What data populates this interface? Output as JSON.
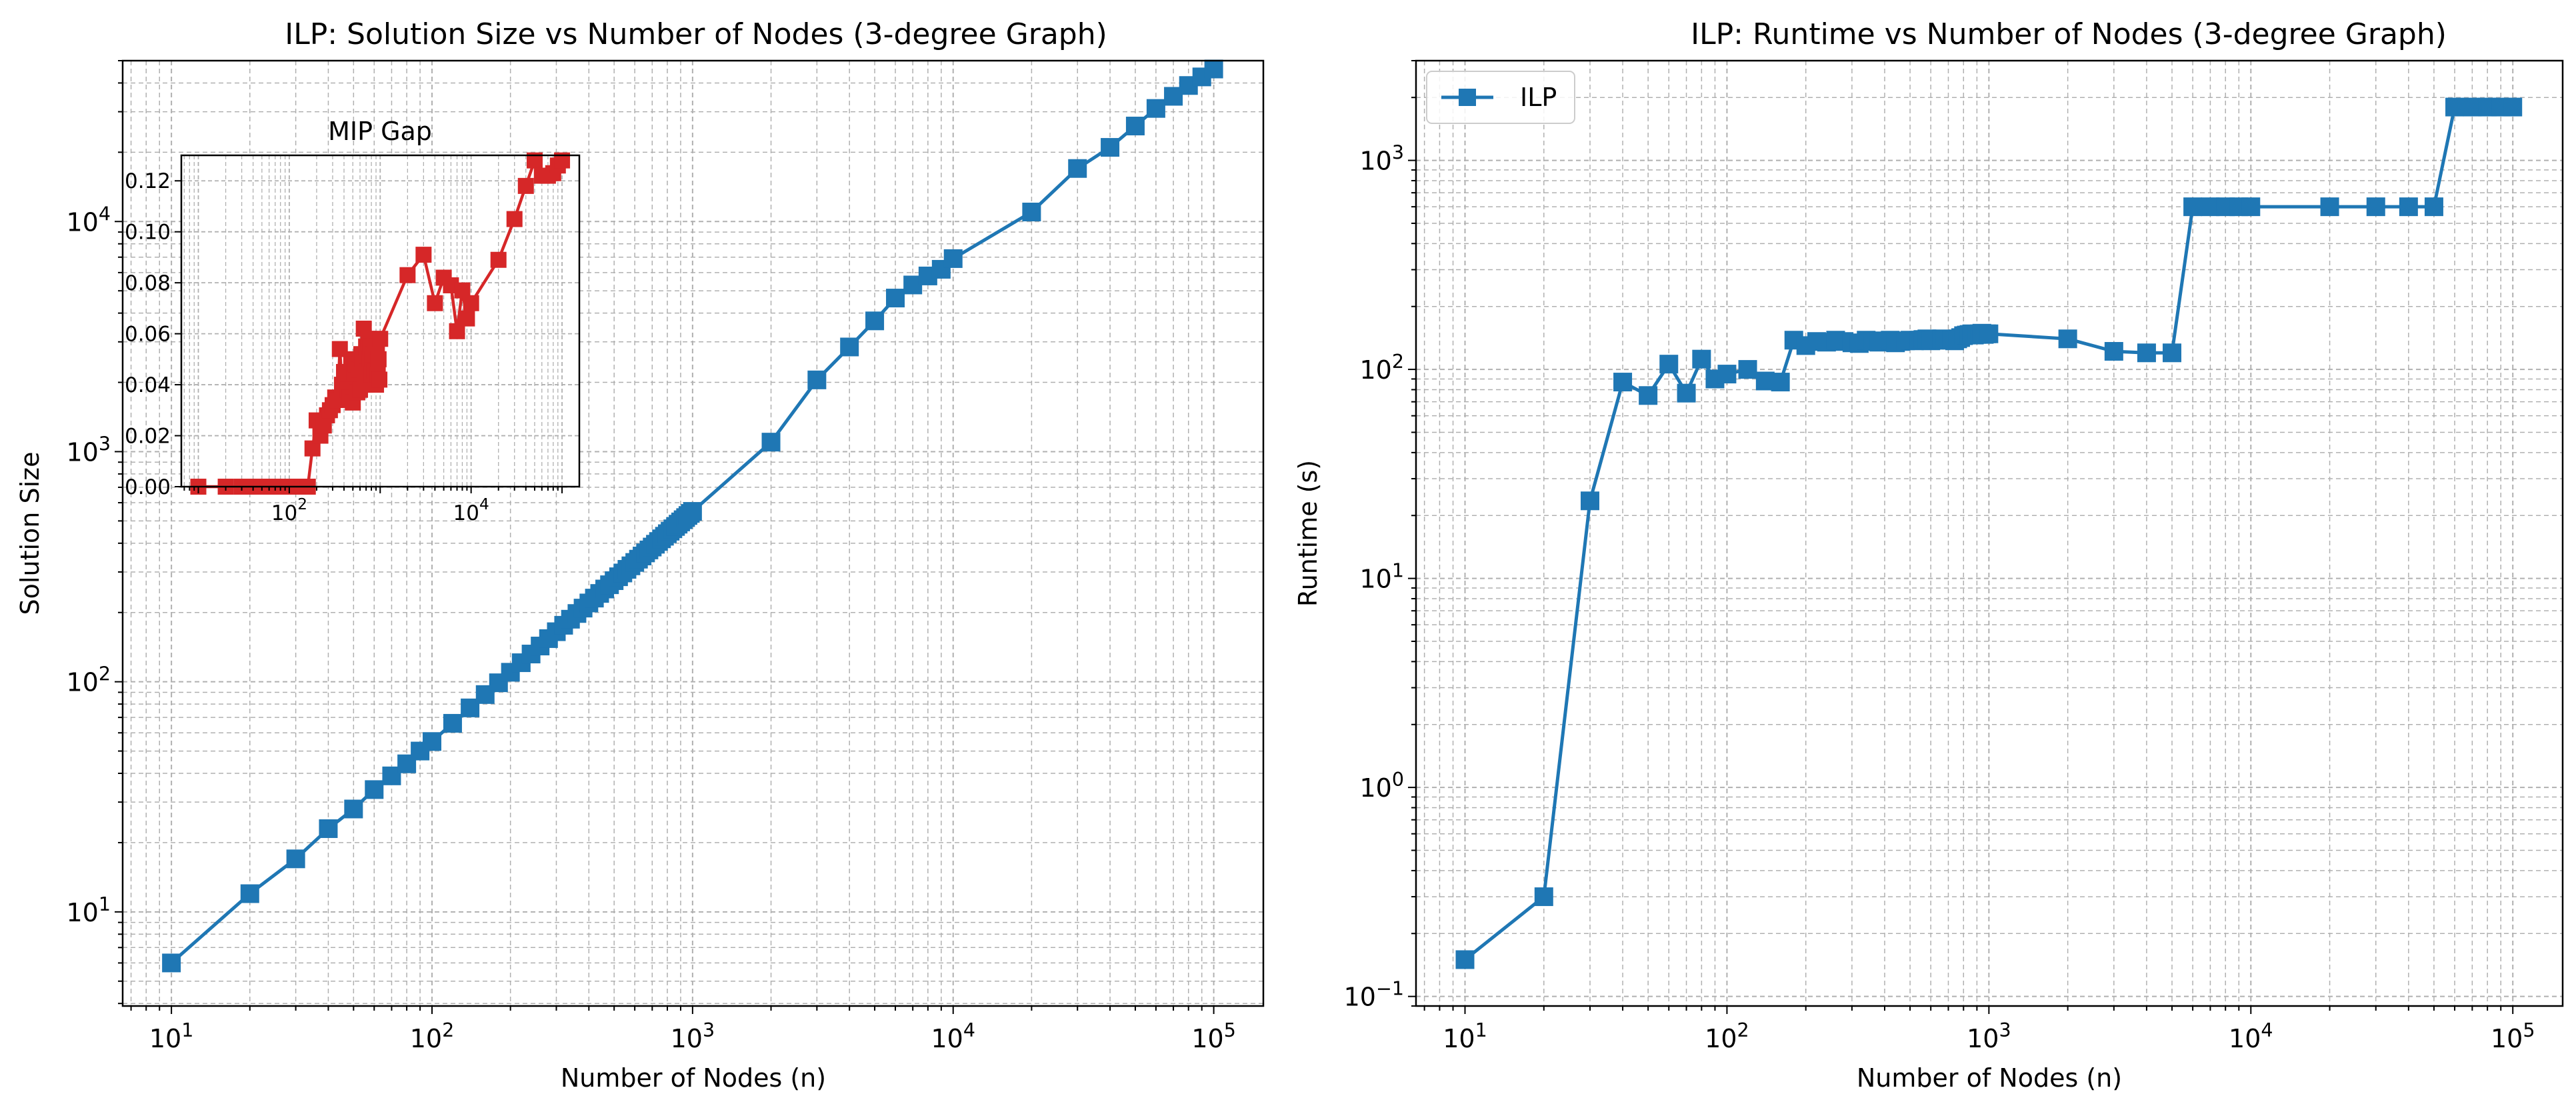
{
  "colors": {
    "ilp": "#1f77b4",
    "gap": "#d62728",
    "grid": "#b0b0b0"
  },
  "chart_data": [
    {
      "type": "line",
      "title": "ILP: Solution Size vs Number of Nodes (3-degree Graph)",
      "xlabel": "Number of Nodes (n)",
      "ylabel": "Solution Size",
      "xscale": "log",
      "yscale": "log",
      "xlim": [
        6.5,
        155000
      ],
      "ylim": [
        3.9,
        50000
      ],
      "xticks": [
        10,
        100,
        1000,
        10000,
        100000
      ],
      "xtick_labels": [
        {
          "b": "10",
          "e": "1"
        },
        {
          "b": "10",
          "e": "2"
        },
        {
          "b": "10",
          "e": "3"
        },
        {
          "b": "10",
          "e": "4"
        },
        {
          "b": "10",
          "e": "5"
        }
      ],
      "yticks": [
        10,
        100,
        1000,
        10000
      ],
      "ytick_labels": [
        {
          "b": "10",
          "e": "1"
        },
        {
          "b": "10",
          "e": "2"
        },
        {
          "b": "10",
          "e": "3"
        },
        {
          "b": "10",
          "e": "4"
        }
      ],
      "grid": true,
      "series": [
        {
          "marker": "square",
          "x": [
            10,
            20,
            30,
            40,
            50,
            60,
            70,
            80,
            90,
            100,
            120,
            140,
            160,
            180,
            200,
            220,
            240,
            260,
            280,
            300,
            320,
            340,
            360,
            380,
            400,
            420,
            440,
            460,
            480,
            500,
            520,
            540,
            560,
            580,
            600,
            620,
            640,
            660,
            680,
            700,
            720,
            740,
            760,
            780,
            800,
            820,
            840,
            860,
            880,
            900,
            920,
            940,
            960,
            980,
            1000,
            2000,
            3000,
            4000,
            5000,
            6000,
            7000,
            8000,
            9000,
            10000,
            20000,
            30000,
            40000,
            50000,
            60000,
            70000,
            80000,
            90000,
            100000
          ],
          "y": [
            6,
            12,
            17,
            23,
            28,
            34,
            39,
            44,
            50,
            55,
            66,
            77,
            88,
            99,
            110,
            121,
            132,
            143,
            154,
            165,
            176,
            187,
            198,
            209,
            220,
            231,
            242,
            253,
            264,
            275,
            286,
            297,
            308,
            319,
            330,
            341,
            352,
            363,
            374,
            385,
            396,
            407,
            418,
            429,
            440,
            451,
            462,
            473,
            484,
            495,
            506,
            517,
            528,
            539,
            550,
            1100,
            2050,
            2850,
            3700,
            4650,
            5300,
            5800,
            6200,
            6900,
            11000,
            17000,
            21000,
            26000,
            31000,
            35000,
            39000,
            42500,
            46000
          ]
        }
      ],
      "inset": {
        "title": "MIP Gap",
        "xscale": "log",
        "xlim": [
          6.5,
          155000
        ],
        "ylim": [
          0,
          0.13
        ],
        "xticks": [
          100,
          10000
        ],
        "xtick_labels": [
          {
            "b": "10",
            "e": "2"
          },
          {
            "b": "10",
            "e": "4"
          }
        ],
        "yticks": [
          0,
          0.02,
          0.04,
          0.06,
          0.08,
          0.1,
          0.12
        ],
        "ytick_labels": [
          "0.00",
          "0.02",
          "0.04",
          "0.06",
          "0.08",
          "0.10",
          "0.12"
        ],
        "grid": true,
        "series": [
          {
            "marker": "square",
            "x": [
              10,
              20,
              30,
              40,
              50,
              60,
              70,
              80,
              90,
              100,
              120,
              140,
              160,
              180,
              200,
              220,
              240,
              260,
              280,
              300,
              320,
              340,
              360,
              380,
              400,
              420,
              440,
              460,
              480,
              500,
              520,
              540,
              560,
              580,
              600,
              620,
              640,
              660,
              680,
              700,
              720,
              740,
              760,
              780,
              800,
              820,
              840,
              860,
              880,
              900,
              920,
              940,
              960,
              980,
              1000,
              2000,
              3000,
              4000,
              5000,
              6000,
              7000,
              8000,
              9000,
              10000,
              20000,
              30000,
              40000,
              50000,
              60000,
              70000,
              80000,
              90000,
              100000
            ],
            "y": [
              0,
              0,
              0,
              0,
              0,
              0,
              0,
              0,
              0,
              0,
              0,
              0,
              0,
              0.015,
              0.026,
              0.02,
              0.024,
              0.028,
              0.03,
              0.032,
              0.035,
              0.034,
              0.054,
              0.04,
              0.045,
              0.044,
              0.038,
              0.035,
              0.05,
              0.033,
              0.045,
              0.048,
              0.037,
              0.046,
              0.038,
              0.052,
              0.05,
              0.062,
              0.04,
              0.055,
              0.045,
              0.058,
              0.05,
              0.055,
              0.044,
              0.05,
              0.052,
              0.045,
              0.058,
              0.04,
              0.055,
              0.044,
              0.05,
              0.042,
              0.058,
              0.083,
              0.091,
              0.072,
              0.082,
              0.079,
              0.061,
              0.077,
              0.066,
              0.072,
              0.089,
              0.105,
              0.118,
              0.128,
              0.122,
              0.122,
              0.123,
              0.126,
              0.128
            ]
          }
        ]
      }
    },
    {
      "type": "line",
      "title": "ILP: Runtime vs Number of Nodes (3-degree Graph)",
      "xlabel": "Number of Nodes (n)",
      "ylabel": "Runtime (s)",
      "xscale": "log",
      "yscale": "log",
      "xlim": [
        6.5,
        155000
      ],
      "ylim": [
        0.09,
        3000
      ],
      "xticks": [
        10,
        100,
        1000,
        10000,
        100000
      ],
      "xtick_labels": [
        {
          "b": "10",
          "e": "1"
        },
        {
          "b": "10",
          "e": "2"
        },
        {
          "b": "10",
          "e": "3"
        },
        {
          "b": "10",
          "e": "4"
        },
        {
          "b": "10",
          "e": "5"
        }
      ],
      "yticks": [
        0.1,
        1,
        10,
        100,
        1000
      ],
      "ytick_labels": [
        {
          "b": "10",
          "e": "−1"
        },
        {
          "b": "10",
          "e": "0"
        },
        {
          "b": "10",
          "e": "1"
        },
        {
          "b": "10",
          "e": "2"
        },
        {
          "b": "10",
          "e": "3"
        }
      ],
      "grid": true,
      "legend": {
        "placement": "upper-left",
        "entries": [
          "ILP"
        ]
      },
      "series": [
        {
          "name": "ILP",
          "marker": "square",
          "x": [
            10,
            20,
            30,
            40,
            50,
            60,
            70,
            80,
            90,
            100,
            120,
            140,
            160,
            180,
            200,
            220,
            240,
            260,
            280,
            300,
            320,
            340,
            360,
            380,
            400,
            420,
            440,
            460,
            480,
            500,
            520,
            540,
            560,
            580,
            600,
            620,
            640,
            660,
            680,
            700,
            720,
            740,
            760,
            780,
            800,
            820,
            840,
            860,
            880,
            900,
            920,
            940,
            960,
            980,
            1000,
            2000,
            3000,
            4000,
            5000,
            6000,
            7000,
            8000,
            9000,
            10000,
            20000,
            30000,
            40000,
            50000,
            60000,
            70000,
            80000,
            90000,
            100000
          ],
          "y": [
            0.15,
            0.3,
            23.5,
            87,
            75,
            106,
            77,
            112,
            90,
            95,
            100,
            88,
            87,
            138,
            130,
            136,
            135,
            138,
            136,
            134,
            133,
            138,
            136,
            135,
            137,
            138,
            134,
            136,
            137,
            138,
            137,
            138,
            139,
            140,
            137,
            138,
            139,
            140,
            138,
            139,
            138,
            137,
            140,
            142,
            145,
            146,
            147,
            148,
            146,
            147,
            148,
            149,
            147,
            148,
            148,
            140,
            122,
            120,
            120,
            600,
            600,
            600,
            600,
            600,
            600,
            600,
            600,
            600,
            1800,
            1800,
            1800,
            1800,
            1800
          ]
        }
      ]
    }
  ]
}
